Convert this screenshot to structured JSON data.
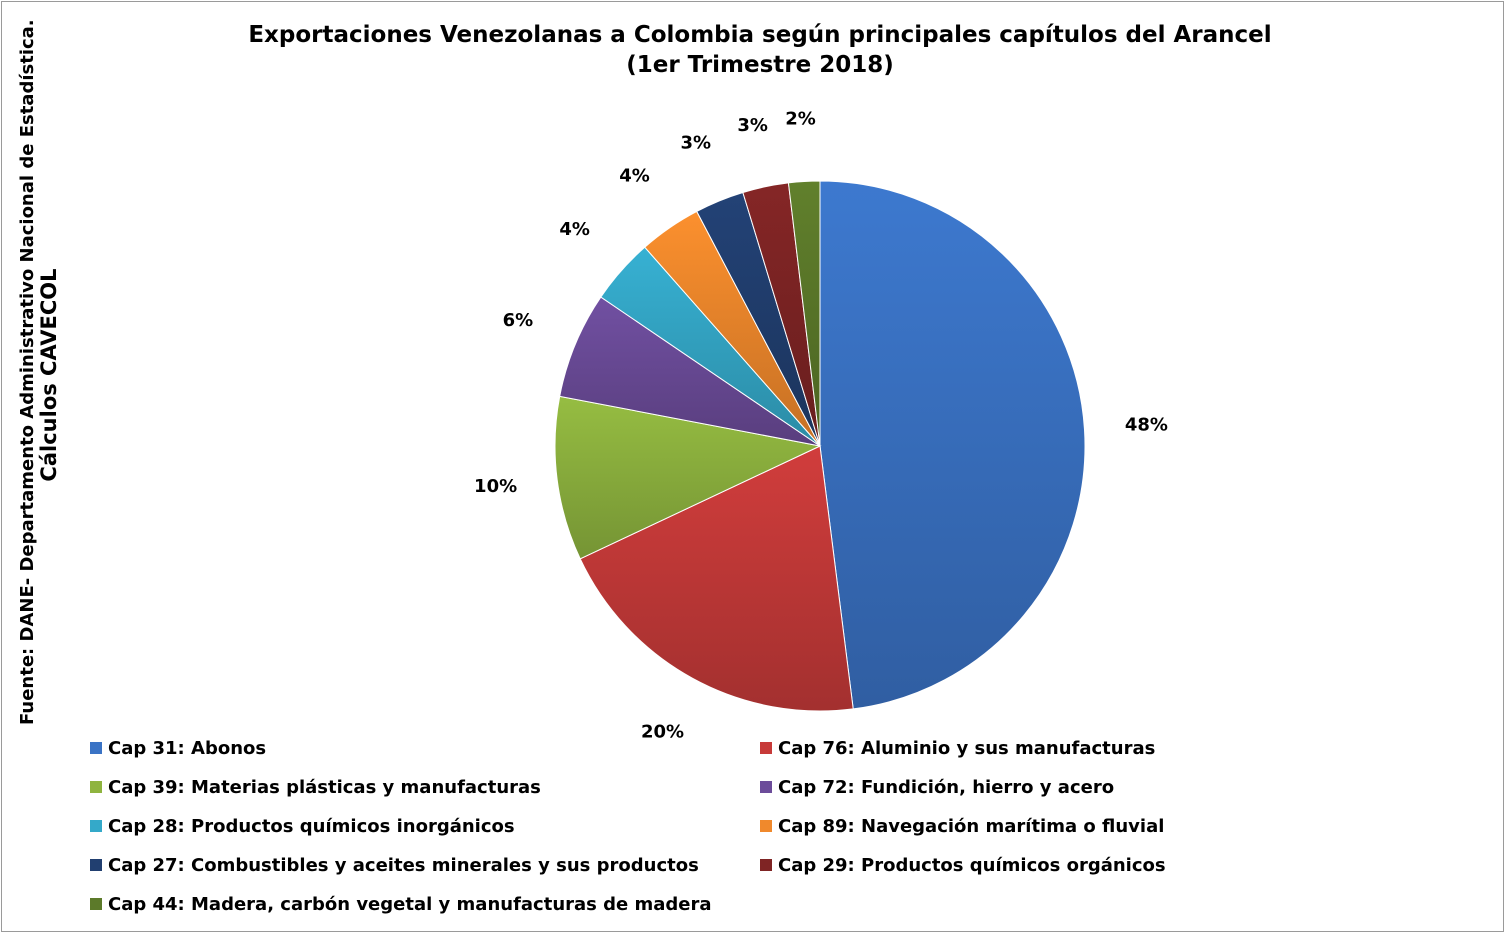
{
  "source_note": {
    "line1": "Fuente: DANE- Departamento Administrativo Nacional de Estadística.",
    "line2": "Cálculos CAVECOL"
  },
  "chart_data": {
    "type": "pie",
    "title": "Exportaciones Venezolanas a Colombia según principales capítulos del Arancel",
    "subtitle": "(1er Trimestre 2018)",
    "legend_position": "bottom",
    "start": "12 o'clock, clockwise",
    "slices": [
      {
        "label": "Cap 31: Abonos",
        "value": 48,
        "display": "48%",
        "color": "#3a73c5"
      },
      {
        "label": "Cap 76: Aluminio y sus manufacturas",
        "value": 20,
        "display": "20%",
        "color": "#c73a39"
      },
      {
        "label": "Cap 39: Materias plásticas y manufacturas",
        "value": 10,
        "display": "10%",
        "color": "#8fb43f"
      },
      {
        "label": "Cap 72: Fundición, hierro y acero",
        "value": 6.5,
        "display": "6%",
        "color": "#6c4c9a"
      },
      {
        "label": "Cap 28: Productos químicos inorgánicos",
        "value": 4,
        "display": "4%",
        "color": "#34a9c9"
      },
      {
        "label": "Cap 89: Navegación marítima o fluvial",
        "value": 3.8,
        "display": "4%",
        "color": "#f0892c"
      },
      {
        "label": "Cap 27: Combustibles y aceites minerales y sus productos",
        "value": 3,
        "display": "3%",
        "color": "#213f70"
      },
      {
        "label": "Cap 29: Productos químicos orgánicos",
        "value": 2.8,
        "display": "3%",
        "color": "#7f2424"
      },
      {
        "label": "Cap 44: Madera, carbón vegetal y manufacturas de madera",
        "value": 1.9,
        "display": "2%",
        "color": "#5c7a2a"
      }
    ]
  }
}
